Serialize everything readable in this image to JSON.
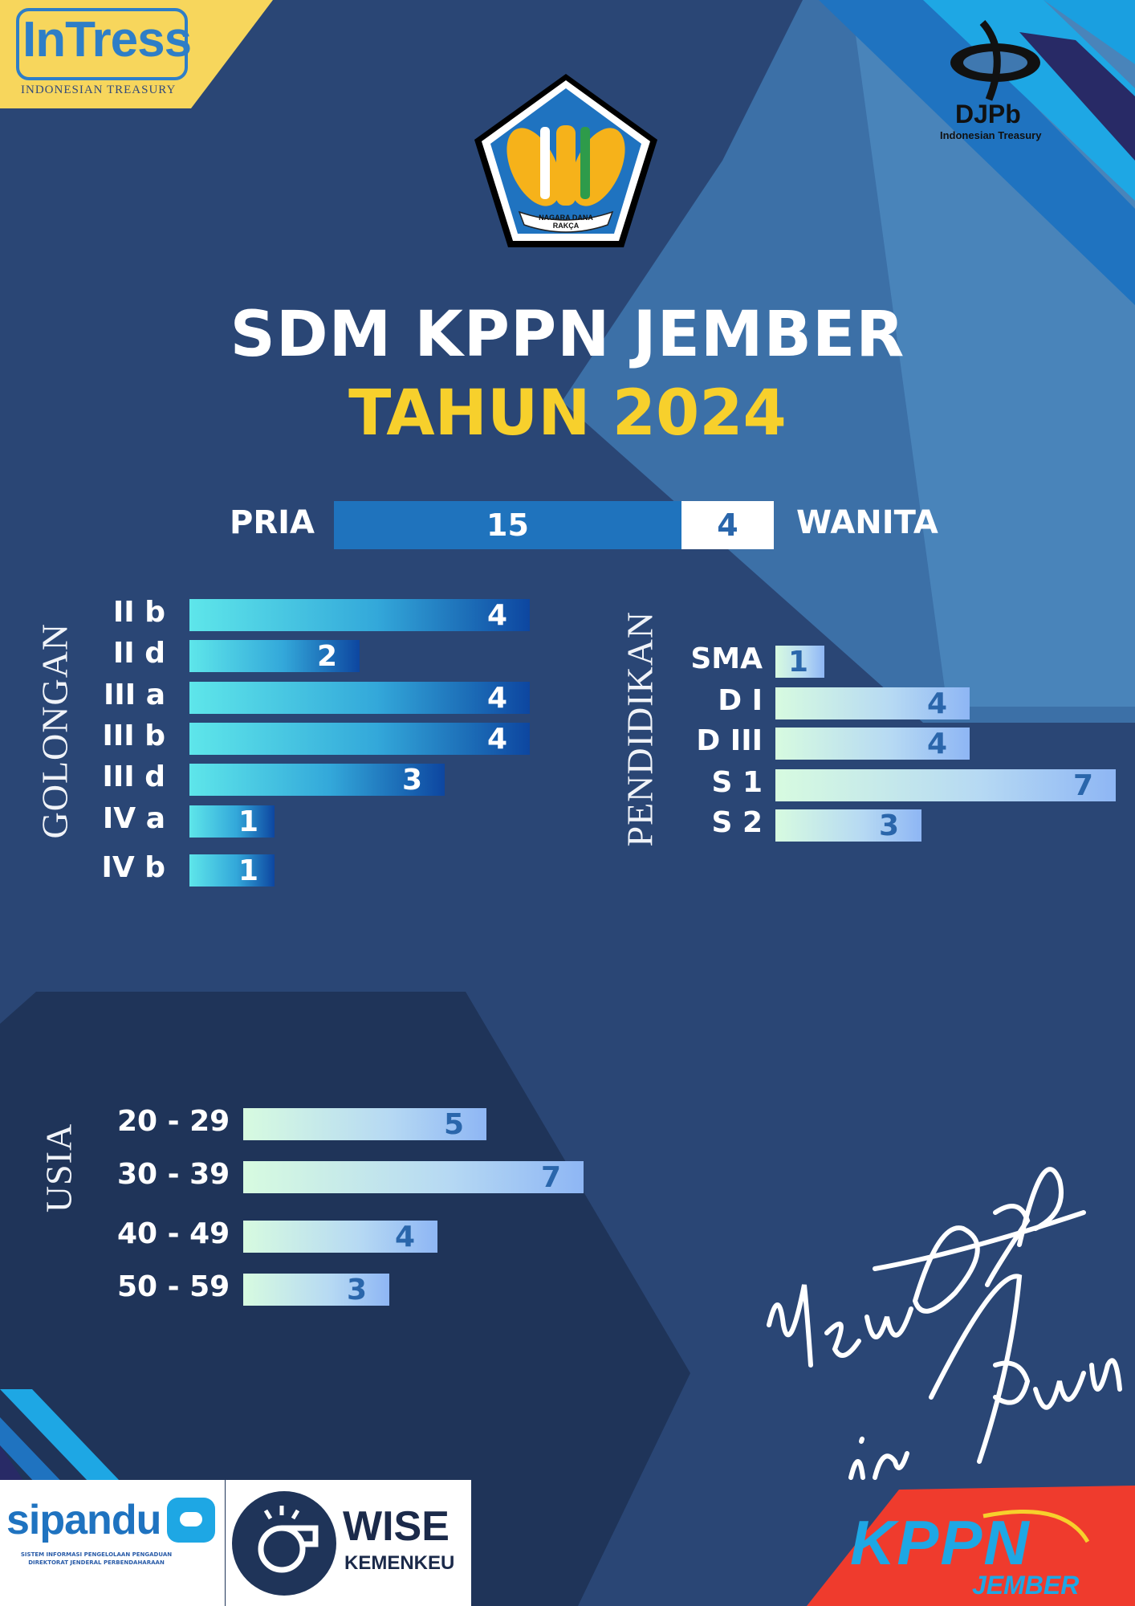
{
  "header": {
    "title_line1": "SDM KPPN JEMBER",
    "title_line2": "TAHUN 2024"
  },
  "logos": {
    "intress_name": "InTress",
    "intress_sub": "INDONESIAN TREASURY",
    "emblem_motto": "NAGARA DANA RAKÇA",
    "djpb_name": "DJPb",
    "djpb_sub": "Indonesian Treasury",
    "sipandu_name": "sipandu",
    "sipandu_sub1": "SISTEM INFORMASI PENGELOLAAN PENGADUAN",
    "sipandu_sub2": "DIREKTORAT JENDERAL PERBENDAHARAAN",
    "wise_name": "WISE",
    "wise_sub": "KEMENKEU",
    "kppn_name": "KPPN",
    "kppn_sub": "JEMBER",
    "slogan_line1": "New DJPb",
    "slogan_line2": "in Town"
  },
  "colors": {
    "background": "#2a4675",
    "panel_dark": "#1f3459",
    "accent_yellow": "#f7d02c",
    "pria_bar": "#1f73bd",
    "wanita_bar": "#ffffff",
    "value_blue": "#2a66ab",
    "kppn_red": "#ef3b2d"
  },
  "chart_data": [
    {
      "type": "bar",
      "orientation": "horizontal-stacked",
      "section": "gender",
      "categories": [
        "PRIA",
        "WANITA"
      ],
      "values": [
        15,
        4
      ]
    },
    {
      "type": "bar",
      "orientation": "horizontal",
      "xlabel": "GOLONGAN",
      "categories": [
        "II b",
        "II d",
        "III a",
        "III b",
        "III d",
        "IV a",
        "IV b"
      ],
      "values": [
        4,
        2,
        4,
        4,
        3,
        1,
        1
      ]
    },
    {
      "type": "bar",
      "orientation": "horizontal",
      "xlabel": "PENDIDIKAN",
      "categories": [
        "SMA",
        "D I",
        "D III",
        "S 1",
        "S 2"
      ],
      "values": [
        1,
        4,
        4,
        7,
        3
      ]
    },
    {
      "type": "bar",
      "orientation": "horizontal",
      "xlabel": "USIA",
      "categories": [
        "20 - 29",
        "30 - 39",
        "40 - 49",
        "50 - 59"
      ],
      "values": [
        5,
        7,
        4,
        3
      ]
    }
  ]
}
